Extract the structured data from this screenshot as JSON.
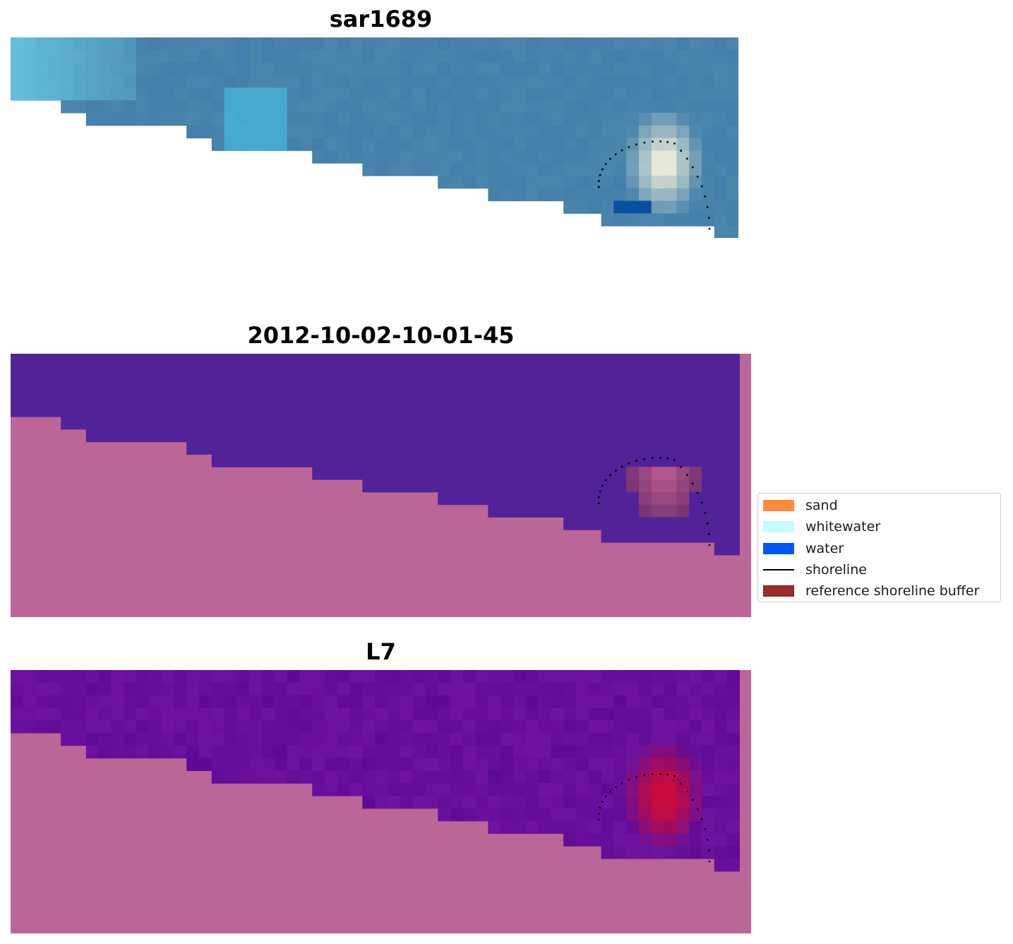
{
  "panels": [
    {
      "title": "sar1689",
      "kind": "rgb"
    },
    {
      "title": "2012-10-02-10-01-45",
      "kind": "classified"
    },
    {
      "title": "L7",
      "kind": "mndwi"
    }
  ],
  "legend": {
    "items": [
      {
        "label": "sand",
        "color": "#ff8c3a",
        "type": "patch"
      },
      {
        "label": "whitewater",
        "color": "#c8fcfc",
        "type": "patch"
      },
      {
        "label": "water",
        "color": "#0055ff",
        "type": "patch"
      },
      {
        "label": "shoreline",
        "color": "#000000",
        "type": "line"
      },
      {
        "label": "reference shoreline buffer",
        "color": "#9b2d2d",
        "type": "patch"
      }
    ]
  },
  "colors": {
    "land_mask": "#bb6696",
    "water_class": "#522299",
    "buffer_overlay": "#7a3060"
  }
}
